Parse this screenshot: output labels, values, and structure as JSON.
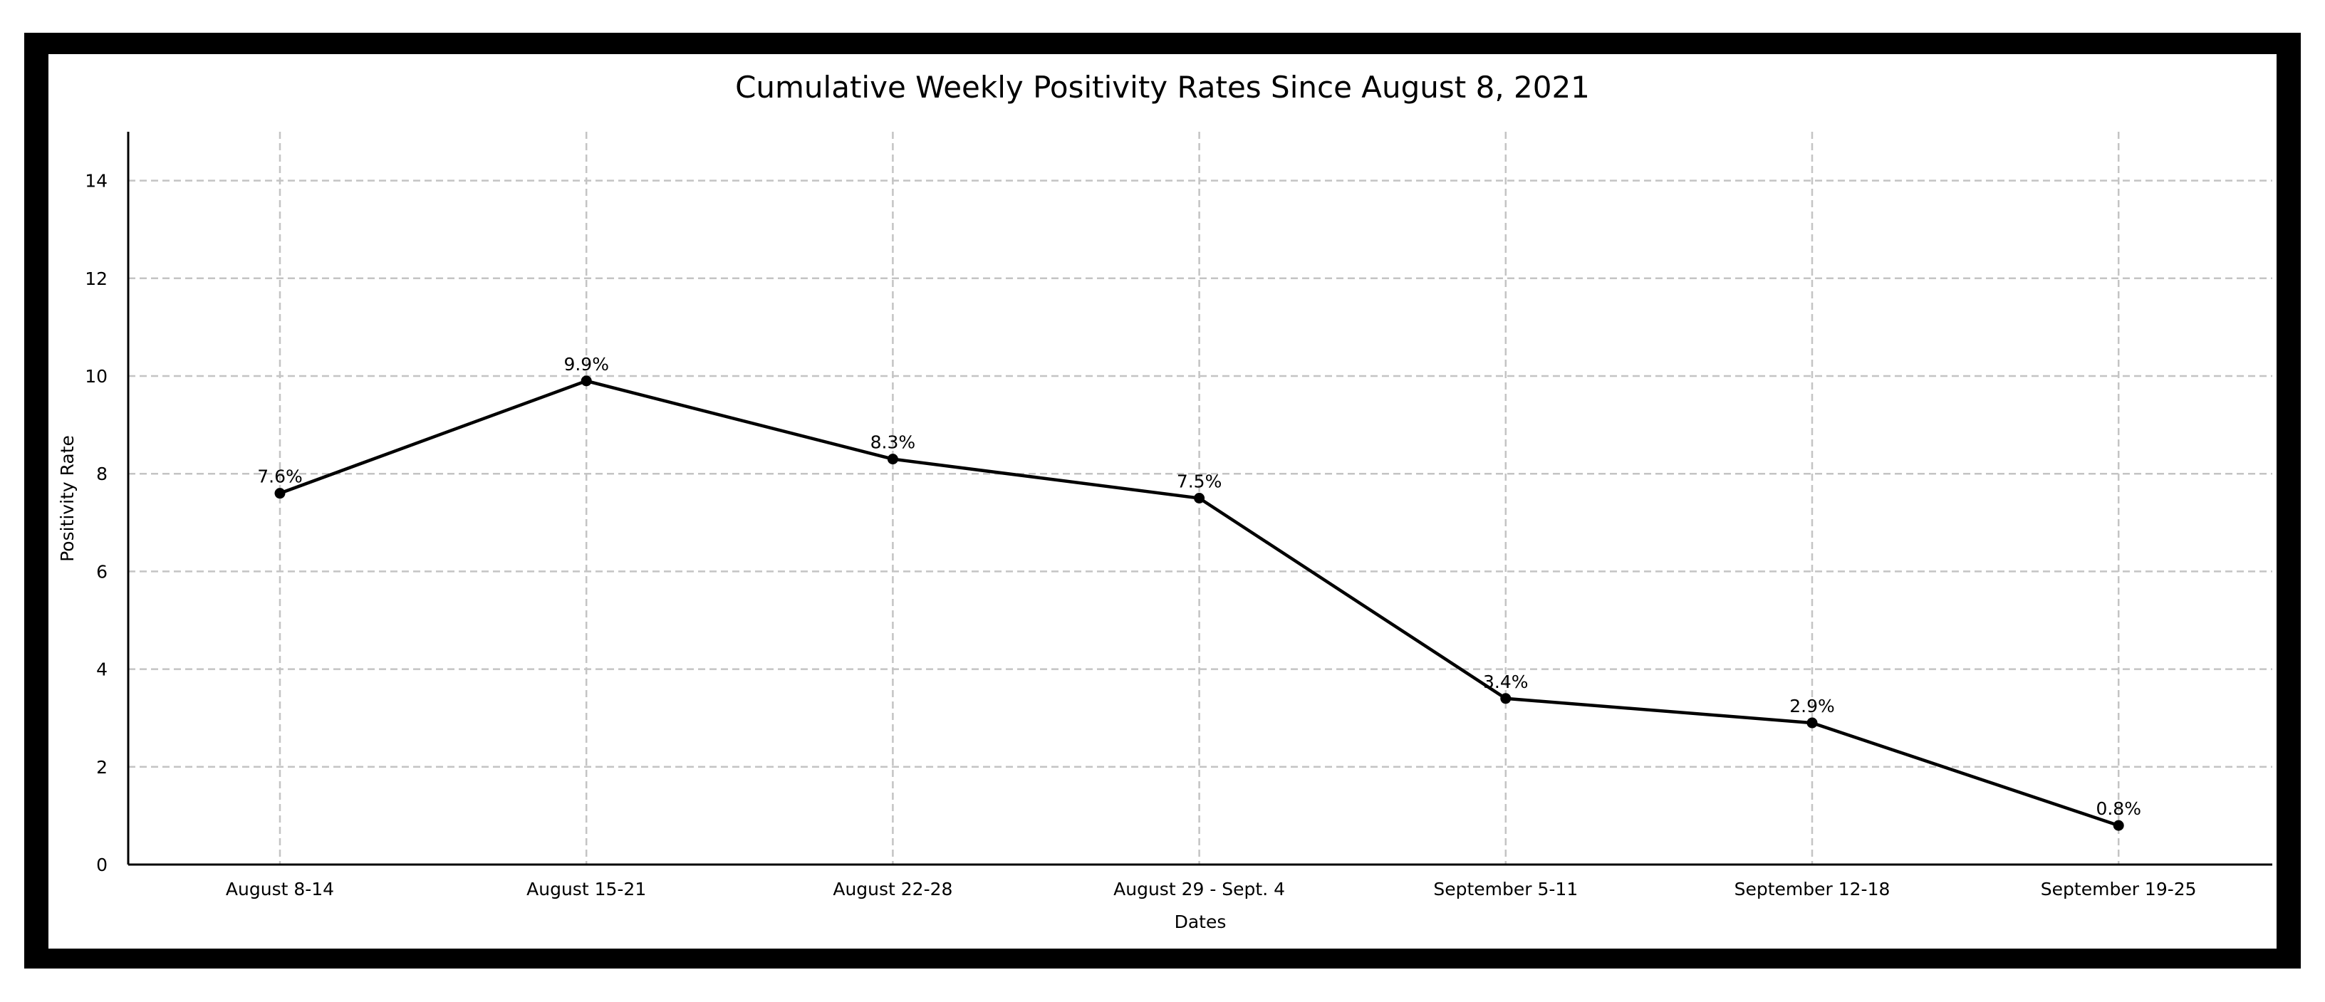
{
  "chart_data": {
    "type": "line",
    "title": "Cumulative Weekly Positivity Rates Since August 8, 2021",
    "xlabel": "Dates",
    "ylabel": "Positivity Rate",
    "categories": [
      "August 8-14",
      "August 15-21",
      "August 22-28",
      "August 29 - Sept. 4",
      "September 5-11",
      "September 12-18",
      "September 19-25"
    ],
    "series": [
      {
        "values": [
          7.6,
          9.9,
          8.3,
          7.5,
          3.4,
          2.9,
          0.8
        ],
        "data_labels": [
          "7.6%",
          "9.9%",
          "8.3%",
          "7.5%",
          "3.4%",
          "2.9%",
          "0.8%"
        ]
      }
    ],
    "ylim": [
      0,
      15
    ],
    "yticks": [
      0,
      2,
      4,
      6,
      8,
      10,
      12,
      14
    ],
    "grid": true,
    "line_color": "#000000",
    "marker_color": "#000000",
    "grid_color": "#c4c4c4",
    "frame_color": "#000000"
  }
}
